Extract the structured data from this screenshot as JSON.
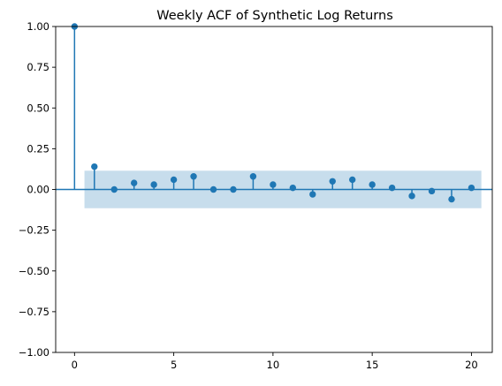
{
  "chart_data": {
    "type": "scatter",
    "title": "Weekly ACF of Synthetic Log Returns",
    "xlabel": "",
    "ylabel": "",
    "xlim": [
      -0.95,
      21.05
    ],
    "ylim": [
      -1.0,
      1.0
    ],
    "x_ticks": [
      0,
      5,
      10,
      15,
      20
    ],
    "y_ticks": [
      -1.0,
      -0.75,
      -0.5,
      -0.25,
      0.0,
      0.25,
      0.5,
      0.75,
      1.0
    ],
    "x_tick_labels": [
      "0",
      "5",
      "10",
      "15",
      "20"
    ],
    "y_tick_labels": [
      "−1.00",
      "−0.75",
      "−0.50",
      "−0.25",
      "0.00",
      "0.25",
      "0.50",
      "0.75",
      "1.00"
    ],
    "grid": false,
    "legend": "none",
    "series": [
      {
        "x": [
          0,
          1,
          2,
          3,
          4,
          5,
          6,
          7,
          8,
          9,
          10,
          11,
          12,
          13,
          14,
          15,
          16,
          17,
          18,
          19,
          20
        ],
        "values": [
          1.0,
          0.14,
          0.0,
          0.04,
          0.03,
          0.06,
          0.08,
          0.0,
          0.0,
          0.08,
          0.03,
          0.01,
          -0.03,
          0.05,
          0.06,
          0.03,
          0.01,
          -0.04,
          -0.01,
          -0.06,
          0.01
        ]
      }
    ],
    "confidence_band": {
      "x": [
        0.5,
        20.5
      ],
      "upper": 0.115,
      "lower": -0.115
    },
    "colors": {
      "stem": "#1f77b4",
      "marker": "#1f77b4",
      "band": "#1f77b4",
      "zero_line": "#1f77b4",
      "axes": "#000000"
    }
  }
}
